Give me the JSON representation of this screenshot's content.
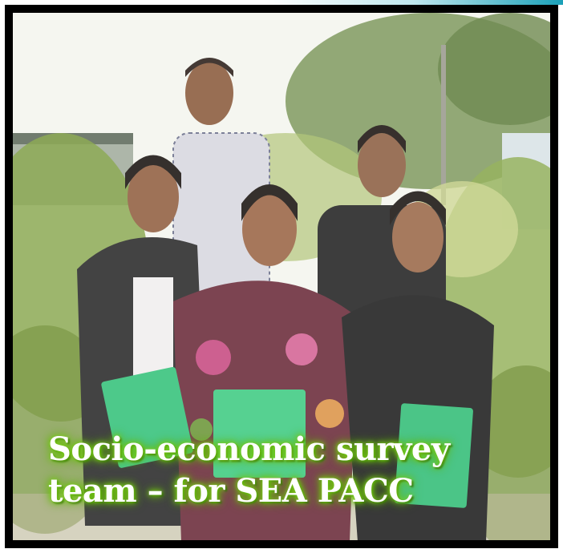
{
  "slide": {
    "caption_line1": "Socio-economic survey",
    "caption_line2": "team – for SEA PACC"
  },
  "photo": {
    "subjects": "five people holding green folders",
    "setting": "outdoor garden with trees and shrubs"
  },
  "colors": {
    "frame": "#000000",
    "caption_glow": "#7fd31a",
    "accent": "#1aa0b8"
  }
}
